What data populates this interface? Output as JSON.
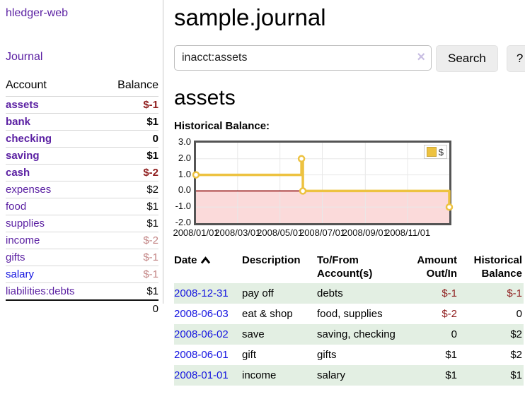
{
  "sidebar": {
    "app_title": "hledger-web",
    "journal_label": "Journal",
    "accounts": {
      "col_account": "Account",
      "col_balance": "Balance",
      "rows": [
        {
          "name": "assets",
          "balance": "$-1"
        },
        {
          "name": "bank",
          "balance": "$1"
        },
        {
          "name": "checking",
          "balance": "0"
        },
        {
          "name": "saving",
          "balance": "$1"
        },
        {
          "name": "cash",
          "balance": "$-2"
        },
        {
          "name": "expenses",
          "balance": "$2"
        },
        {
          "name": "food",
          "balance": "$1"
        },
        {
          "name": "supplies",
          "balance": "$1"
        },
        {
          "name": "income",
          "balance": "$-2"
        },
        {
          "name": "gifts",
          "balance": "$-1"
        },
        {
          "name": "salary",
          "balance": "$-1"
        },
        {
          "name": "liabilities:debts",
          "balance": "$1"
        }
      ],
      "total": "0"
    }
  },
  "main": {
    "title": "sample.journal",
    "search": {
      "value": "inacct:assets",
      "clear_icon": "×",
      "button_label": "Search",
      "help_label": "?"
    },
    "account_heading": "assets",
    "register": {
      "headers": {
        "date": "Date",
        "description": "Description",
        "accounts": "To/From Account(s)",
        "amount": "Amount Out/In",
        "balance": "Historical Balance"
      },
      "rows": [
        {
          "date": "2008-12-31",
          "description": "pay off",
          "accounts": "debts",
          "amount": "$-1",
          "balance": "$-1"
        },
        {
          "date": "2008-06-03",
          "description": "eat & shop",
          "accounts": "food, supplies",
          "amount": "$-2",
          "balance": "0"
        },
        {
          "date": "2008-06-02",
          "description": "save",
          "accounts": "saving, checking",
          "amount": "0",
          "balance": "$2"
        },
        {
          "date": "2008-06-01",
          "description": "gift",
          "accounts": "gifts",
          "amount": "$1",
          "balance": "$2"
        },
        {
          "date": "2008-01-01",
          "description": "income",
          "accounts": "salary",
          "amount": "$1",
          "balance": "$1"
        }
      ]
    }
  },
  "chart_data": {
    "type": "line",
    "step": true,
    "title": "Historical Balance:",
    "legend_label": "$",
    "legend_position": "top-right",
    "series": [
      {
        "name": "$",
        "color": "#edc240",
        "points": [
          [
            "2008-01-01",
            1
          ],
          [
            "2008-06-01",
            2
          ],
          [
            "2008-06-03",
            0
          ],
          [
            "2008-12-31",
            -1
          ]
        ]
      }
    ],
    "x_range": [
      "2008-01-01",
      "2008-12-31"
    ],
    "ylim": [
      -2,
      3
    ],
    "y_ticks": [
      "3.0",
      "2.0",
      "1.0",
      "0.0",
      "-1.0",
      "-2.0"
    ],
    "x_ticks": [
      "2008/01/01",
      "2008/03/01",
      "2008/05/01",
      "2008/07/01",
      "2008/09/01",
      "2008/11/01"
    ],
    "grid": true,
    "negative_region_color": "#fbdada",
    "zero_line_color": "#8b0000"
  },
  "colors": {
    "accent_purple": "#5a1fa2",
    "link_blue": "#1414e0",
    "negative_dark": "#8f1d1d",
    "negative_light": "#c28383",
    "row_green": "#e3efe3",
    "series_gold": "#edc240"
  }
}
